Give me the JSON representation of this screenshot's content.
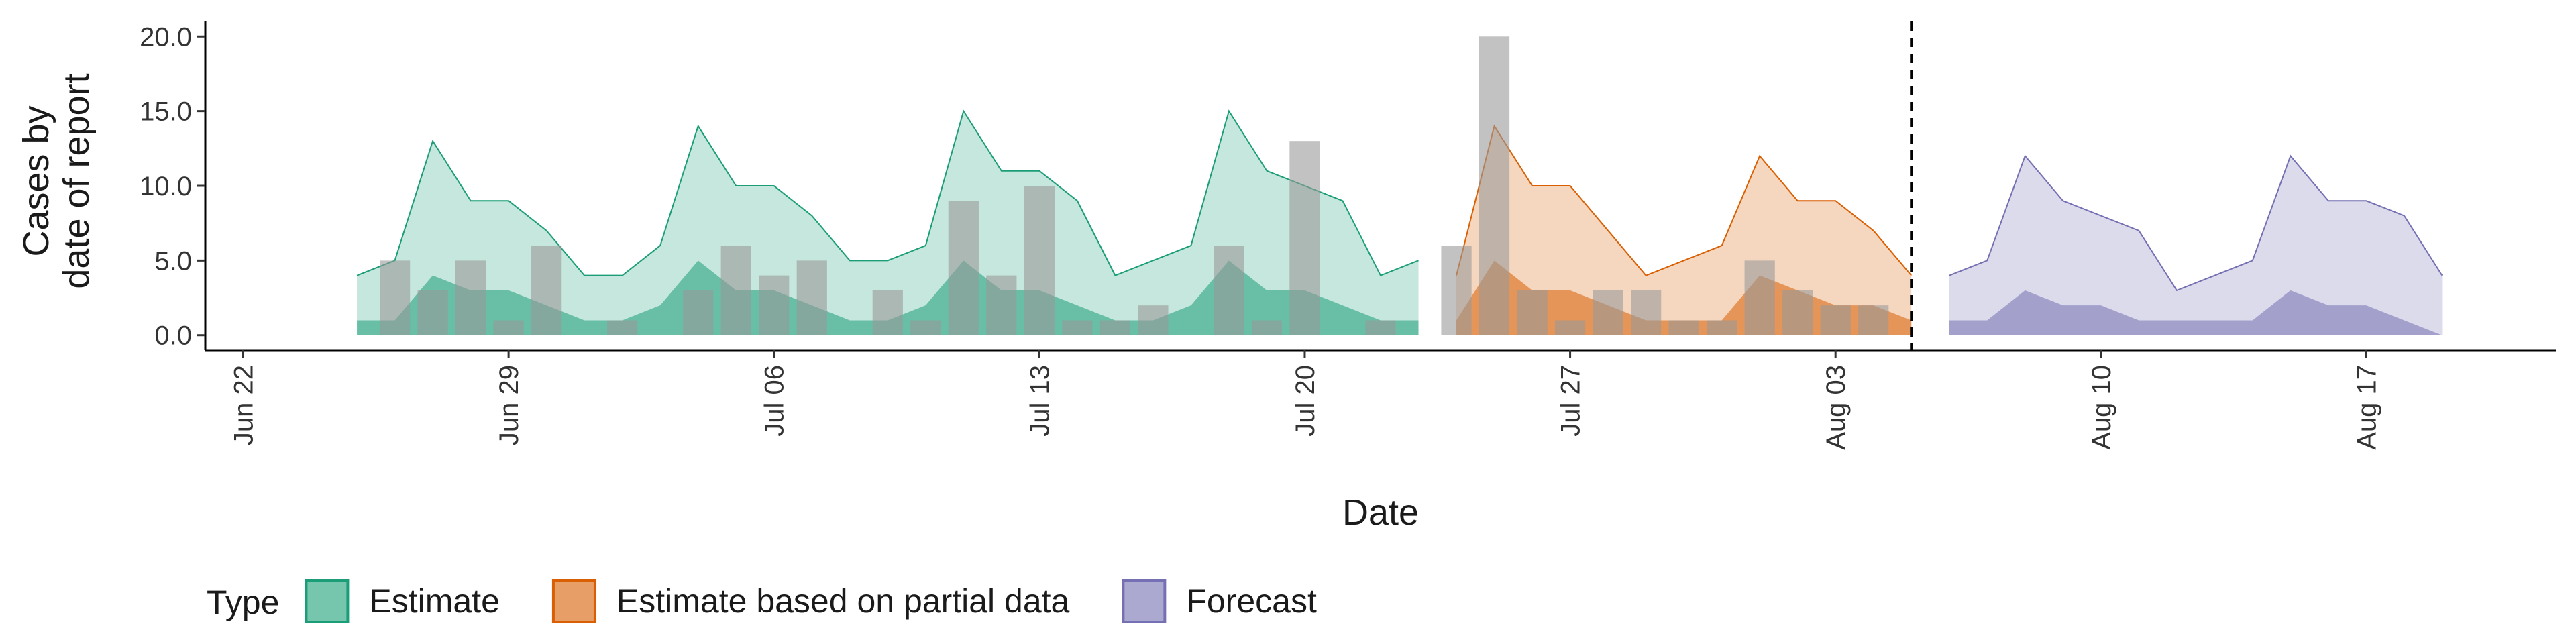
{
  "chart_data": {
    "type": "ribbon",
    "xlabel": "Date",
    "ylabel": [
      "Cases by",
      "date of report"
    ],
    "legend_title": "Type",
    "xlim": [
      "06-21",
      "08-22"
    ],
    "xticks": [
      {
        "value": "06-22",
        "label": "Jun 22"
      },
      {
        "value": "06-29",
        "label": "Jun 29"
      },
      {
        "value": "07-06",
        "label": "Jul 06"
      },
      {
        "value": "07-13",
        "label": "Jul 13"
      },
      {
        "value": "07-20",
        "label": "Jul 20"
      },
      {
        "value": "07-27",
        "label": "Jul 27"
      },
      {
        "value": "08-03",
        "label": "Aug 03"
      },
      {
        "value": "08-10",
        "label": "Aug 10"
      },
      {
        "value": "08-17",
        "label": "Aug 17"
      }
    ],
    "ylim": [
      -1,
      21
    ],
    "yticks": [
      {
        "value": 0,
        "label": "0.0"
      },
      {
        "value": 5,
        "label": "5.0"
      },
      {
        "value": 10,
        "label": "10.0"
      },
      {
        "value": 15,
        "label": "15.0"
      },
      {
        "value": 20,
        "label": "20.0"
      }
    ],
    "vline": "08-05",
    "series": [
      {
        "name": "Estimate",
        "color": "#1b9e77",
        "x": [
          "06-25",
          "06-26",
          "06-27",
          "06-28",
          "06-29",
          "06-30",
          "07-01",
          "07-02",
          "07-03",
          "07-04",
          "07-05",
          "07-06",
          "07-07",
          "07-08",
          "07-09",
          "07-10",
          "07-11",
          "07-12",
          "07-13",
          "07-14",
          "07-15",
          "07-16",
          "07-17",
          "07-18",
          "07-19",
          "07-20",
          "07-21",
          "07-22",
          "07-23"
        ],
        "values": [
          4,
          5,
          13,
          9,
          9,
          7,
          4,
          4,
          6,
          14,
          10,
          10,
          8,
          5,
          5,
          6,
          15,
          11,
          11,
          9,
          4,
          5,
          6,
          15,
          11,
          10,
          9,
          4,
          5
        ],
        "inner_values": [
          1,
          1,
          4,
          3,
          3,
          2,
          1,
          1,
          2,
          5,
          3,
          3,
          2,
          1,
          1,
          2,
          5,
          3,
          3,
          2,
          1,
          1,
          2,
          5,
          3,
          3,
          2,
          1,
          1
        ]
      },
      {
        "name": "Estimate based on partial data",
        "color": "#d95f02",
        "x": [
          "07-24",
          "07-25",
          "07-26",
          "07-27",
          "07-28",
          "07-29",
          "07-30",
          "07-31",
          "08-01",
          "08-02",
          "08-03",
          "08-04",
          "08-05"
        ],
        "values": [
          4,
          14,
          10,
          10,
          7,
          4,
          5,
          6,
          12,
          9,
          9,
          7,
          4
        ],
        "inner_values": [
          1,
          5,
          3,
          3,
          2,
          1,
          1,
          1,
          4,
          3,
          2,
          2,
          1
        ]
      },
      {
        "name": "Forecast",
        "color": "#7570b3",
        "x": [
          "08-06",
          "08-07",
          "08-08",
          "08-09",
          "08-10",
          "08-11",
          "08-12",
          "08-13",
          "08-14",
          "08-15",
          "08-16",
          "08-17",
          "08-18",
          "08-19"
        ],
        "values": [
          4,
          5,
          12,
          9,
          8,
          7,
          3,
          4,
          5,
          12,
          9,
          9,
          8,
          4
        ],
        "inner_values": [
          1,
          1,
          3,
          2,
          2,
          1,
          1,
          1,
          1,
          3,
          2,
          2,
          1,
          0
        ]
      }
    ],
    "reported": {
      "color": "#999999",
      "x": [
        "06-26",
        "06-27",
        "06-28",
        "06-29",
        "06-30",
        "07-01",
        "07-02",
        "07-03",
        "07-04",
        "07-05",
        "07-06",
        "07-07",
        "07-08",
        "07-09",
        "07-10",
        "07-11",
        "07-12",
        "07-13",
        "07-14",
        "07-15",
        "07-16",
        "07-17",
        "07-18",
        "07-19",
        "07-20",
        "07-21",
        "07-22",
        "07-23",
        "07-24",
        "07-25",
        "07-26",
        "07-27",
        "07-28",
        "07-29",
        "07-30",
        "07-31",
        "08-01",
        "08-02",
        "08-03",
        "08-04"
      ],
      "values": [
        5,
        3,
        5,
        1,
        6,
        0,
        1,
        0,
        3,
        6,
        4,
        5,
        0,
        3,
        1,
        9,
        4,
        10,
        1,
        1,
        2,
        0,
        6,
        1,
        13,
        0,
        1,
        0,
        6,
        20,
        3,
        1,
        3,
        3,
        1,
        1,
        5,
        3,
        2,
        2
      ]
    }
  }
}
